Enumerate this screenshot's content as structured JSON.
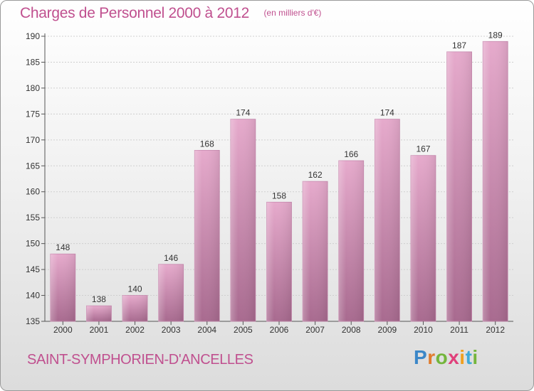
{
  "header": {
    "title": "Charges de Personnel 2000 à 2012",
    "subtitle": "(en milliers d'€)"
  },
  "footer": {
    "location": "SAINT-SYMPHORIEN-D'ANCELLES",
    "logo": "Proxiti"
  },
  "colors": {
    "accent": "#c0508f",
    "bar_top": "#e6aacc",
    "bar_bottom": "#a86a8f"
  },
  "chart_data": {
    "type": "bar",
    "title": "Charges de Personnel 2000 à 2012",
    "subtitle": "(en milliers d'€)",
    "categories": [
      "2000",
      "2001",
      "2002",
      "2003",
      "2004",
      "2005",
      "2006",
      "2007",
      "2008",
      "2009",
      "2010",
      "2011",
      "2012"
    ],
    "values": [
      148,
      138,
      140,
      146,
      168,
      174,
      158,
      162,
      166,
      174,
      167,
      187,
      189
    ],
    "ylim": [
      135,
      190
    ],
    "yticks": [
      135,
      140,
      145,
      150,
      155,
      160,
      165,
      170,
      175,
      180,
      185,
      190
    ],
    "grid": true,
    "data_labels": true
  }
}
